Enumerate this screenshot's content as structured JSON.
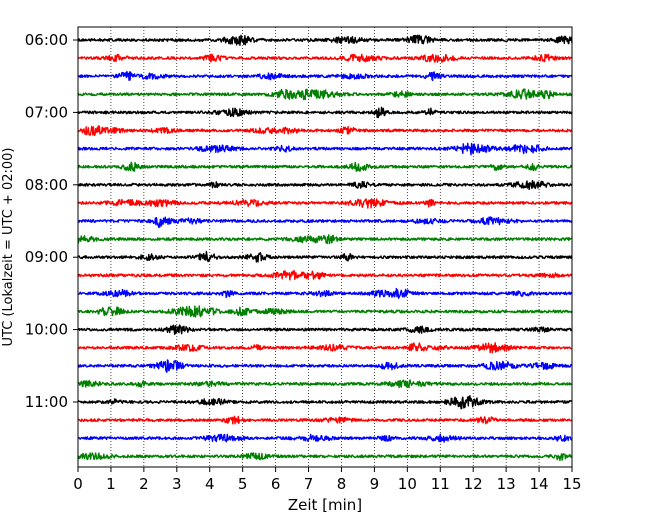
{
  "chart_data": {
    "type": "line",
    "xlabel": "Zeit  [min]",
    "ylabel": "UTC (Lokalzeit = UTC + 02:00)",
    "xlim": [
      0,
      15
    ],
    "x_ticks": [
      "0",
      "1",
      "2",
      "3",
      "4",
      "5",
      "6",
      "7",
      "8",
      "9",
      "10",
      "11",
      "12",
      "13",
      "14",
      "15"
    ],
    "y_ticks": [
      "06:00",
      "07:00",
      "08:00",
      "09:00",
      "10:00",
      "11:00"
    ],
    "grid": "vertical dotted lines at each minute",
    "trace_colors": [
      "#000000",
      "#ff0000",
      "#0000ff",
      "#008000"
    ],
    "traces": [
      {
        "start": "06:00",
        "color": "#000000"
      },
      {
        "start": "06:15",
        "color": "#ff0000"
      },
      {
        "start": "06:30",
        "color": "#0000ff"
      },
      {
        "start": "06:45",
        "color": "#008000"
      },
      {
        "start": "07:00",
        "color": "#000000"
      },
      {
        "start": "07:15",
        "color": "#ff0000"
      },
      {
        "start": "07:30",
        "color": "#0000ff"
      },
      {
        "start": "07:45",
        "color": "#008000"
      },
      {
        "start": "08:00",
        "color": "#000000"
      },
      {
        "start": "08:15",
        "color": "#ff0000"
      },
      {
        "start": "08:30",
        "color": "#0000ff"
      },
      {
        "start": "08:45",
        "color": "#008000"
      },
      {
        "start": "09:00",
        "color": "#000000"
      },
      {
        "start": "09:15",
        "color": "#ff0000"
      },
      {
        "start": "09:30",
        "color": "#0000ff"
      },
      {
        "start": "09:45",
        "color": "#008000"
      },
      {
        "start": "10:00",
        "color": "#000000"
      },
      {
        "start": "10:15",
        "color": "#ff0000"
      },
      {
        "start": "10:30",
        "color": "#0000ff"
      },
      {
        "start": "10:45",
        "color": "#008000"
      },
      {
        "start": "11:00",
        "color": "#000000"
      },
      {
        "start": "11:15",
        "color": "#ff0000"
      },
      {
        "start": "11:30",
        "color": "#0000ff"
      },
      {
        "start": "11:45",
        "color": "#008000"
      }
    ]
  }
}
